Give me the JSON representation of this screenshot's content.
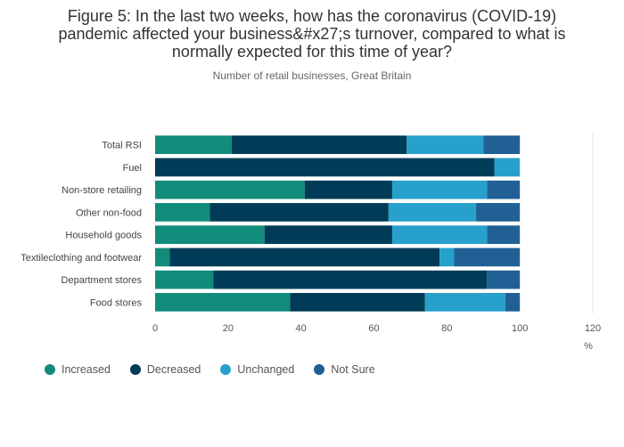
{
  "title_lines": [
    "Figure 5: In the last two weeks, how has the coronavirus (COVID-19)",
    "pandemic affected your business&#x27;s turnover, compared to what is",
    "normally expected for this time of year?"
  ],
  "subtitle": "Number of retail businesses, Great Britain",
  "chart_data": {
    "type": "bar",
    "orientation": "horizontal",
    "stacked": true,
    "categories": [
      "Total RSI",
      "Fuel",
      "Non-store retailing",
      "Other non-food",
      "Household goods",
      "Textileclothing and footwear",
      "Department stores",
      "Food stores"
    ],
    "series": [
      {
        "name": "Increased",
        "color": "#118c7b",
        "values": [
          21,
          0,
          41,
          15,
          30,
          4,
          16,
          37
        ]
      },
      {
        "name": "Decreased",
        "color": "#003c57",
        "values": [
          48,
          93,
          24,
          49,
          35,
          74,
          75,
          37
        ]
      },
      {
        "name": "Unchanged",
        "color": "#27a0cc",
        "values": [
          21,
          7,
          26,
          24,
          26,
          4,
          0,
          22
        ]
      },
      {
        "name": "Not Sure",
        "color": "#206095",
        "values": [
          10,
          0,
          9,
          12,
          9,
          18,
          9,
          4
        ]
      }
    ],
    "x_ticks": [
      "0",
      "20",
      "40",
      "60",
      "80",
      "100",
      "120"
    ],
    "xlim": [
      0,
      120
    ],
    "xlabel": "%",
    "legend_position": "bottom-left",
    "grid": false
  }
}
